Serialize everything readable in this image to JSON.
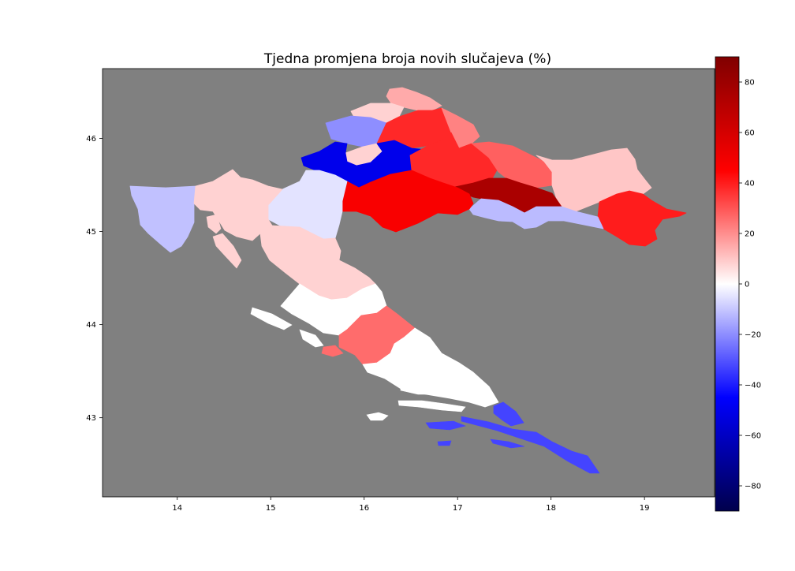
{
  "chart_data": {
    "type": "choropleth",
    "title": "Tjedna promjena broja novih slučajeva (%)",
    "xlabel": "",
    "ylabel": "",
    "xlim": [
      13.2,
      19.75
    ],
    "ylim": [
      42.15,
      46.75
    ],
    "x_ticks": [
      14,
      15,
      16,
      17,
      18,
      19
    ],
    "y_ticks": [
      43,
      44,
      45,
      46
    ],
    "background_color": "#808080",
    "colormap": "seismic",
    "colorbar": {
      "range": [
        -90,
        90
      ],
      "ticks": [
        -80,
        -60,
        -40,
        -20,
        0,
        20,
        40,
        60,
        80
      ],
      "placement": "right"
    },
    "regions": [
      {
        "id": "zagrebacka-east",
        "value": 15
      },
      {
        "id": "medimurska",
        "value": 8
      },
      {
        "id": "varazdinska",
        "value": -20
      },
      {
        "id": "krapinsko-zagorska",
        "value": 38
      },
      {
        "id": "koprivnicko-krizevacka",
        "value": 22
      },
      {
        "id": "zagreb-city",
        "value": 8
      },
      {
        "id": "zagrebacka",
        "value": -50
      },
      {
        "id": "bjelovarsko-bilogorska",
        "value": 38
      },
      {
        "id": "viroviticko-podravska",
        "value": 28
      },
      {
        "id": "osjecko-baranjska",
        "value": 10
      },
      {
        "id": "vukovarsko-srijemska",
        "value": 40
      },
      {
        "id": "pozesko-slavonska",
        "value": 75
      },
      {
        "id": "brodsko-posavska",
        "value": -12
      },
      {
        "id": "sisacko-moslavacka",
        "value": 47
      },
      {
        "id": "karlovacka",
        "value": -5
      },
      {
        "id": "istarska",
        "value": -11
      },
      {
        "id": "primorsko-goranska",
        "value": 8
      },
      {
        "id": "licko-senjska",
        "value": 8
      },
      {
        "id": "zadarska",
        "value": 0
      },
      {
        "id": "sibensko-kninska",
        "value": 26
      },
      {
        "id": "splitsko-dalmatinska",
        "value": 0
      },
      {
        "id": "dubrovacko-neretvanska",
        "value": -33
      }
    ]
  }
}
